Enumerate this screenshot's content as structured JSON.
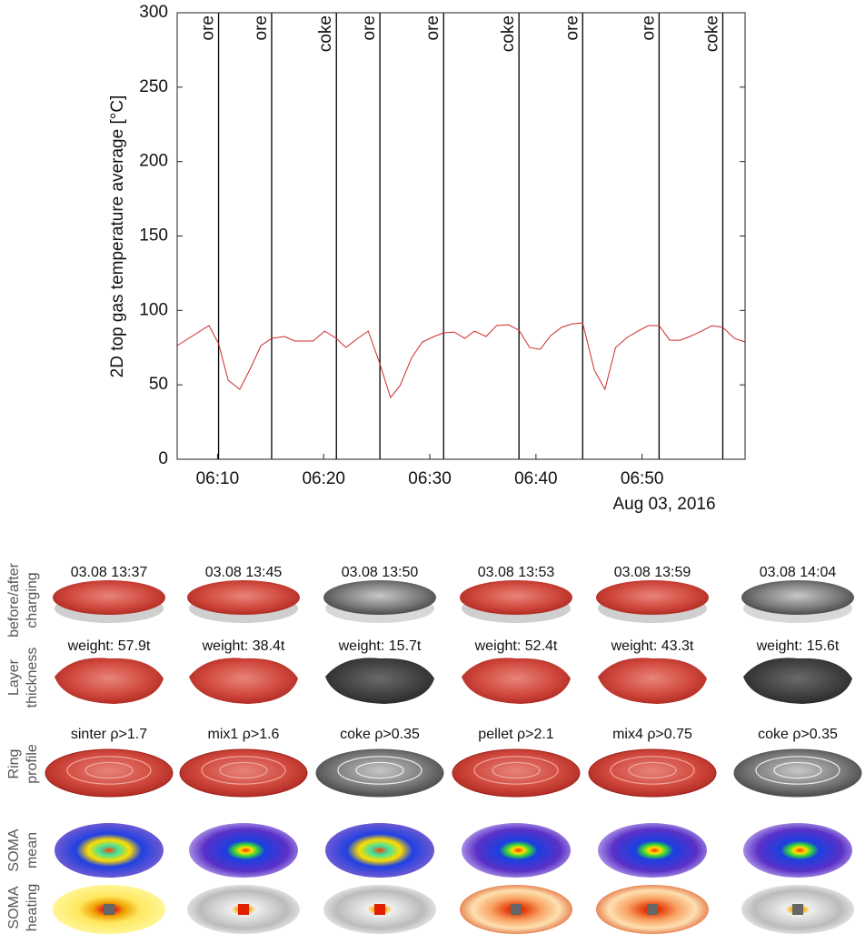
{
  "chart_data": {
    "type": "line",
    "y_label": "2D top gas temperature average [°C]",
    "date_label": "Aug 03, 2016",
    "color": "#cc2a2a",
    "xlim": [
      366.2,
      419.7
    ],
    "xticks": [
      {
        "value": 370,
        "label": "06:10"
      },
      {
        "value": 380,
        "label": "06:20"
      },
      {
        "value": 390,
        "label": "06:30"
      },
      {
        "value": 400,
        "label": "06:40"
      },
      {
        "value": 410,
        "label": "06:50"
      }
    ],
    "ylim": [
      0,
      300
    ],
    "yticks": [
      0,
      50,
      100,
      150,
      200,
      250,
      300
    ],
    "x": [
      366.2,
      369.2,
      370.1,
      371.0,
      372.1,
      373.1,
      374.1,
      375.1,
      376.3,
      377.3,
      379.0,
      380.1,
      381.2,
      382.1,
      383.2,
      384.2,
      385.3,
      386.3,
      387.2,
      388.3,
      389.3,
      390.4,
      391.3,
      392.3,
      393.3,
      394.2,
      395.3,
      396.3,
      397.4,
      398.4,
      399.4,
      400.4,
      401.4,
      402.4,
      403.4,
      404.4,
      405.5,
      406.5,
      407.5,
      408.6,
      409.6,
      410.6,
      411.6,
      412.6,
      413.6,
      414.5,
      415.6,
      416.6,
      417.6,
      418.7,
      419.7
    ],
    "values": [
      76.4,
      89.8,
      77.6,
      53.1,
      47.0,
      61.1,
      76.4,
      81.2,
      82.5,
      79.4,
      79.4,
      86.1,
      81.2,
      75.1,
      81.2,
      86.1,
      64.1,
      41.5,
      49.5,
      68.4,
      78.8,
      82.5,
      84.9,
      85.5,
      81.2,
      86.1,
      82.5,
      89.8,
      90.4,
      86.7,
      75.1,
      73.9,
      83.1,
      88.6,
      91.0,
      91.6,
      59.9,
      47.0,
      75.1,
      81.9,
      86.1,
      89.8,
      89.8,
      80.0,
      80.0,
      82.5,
      86.1,
      89.8,
      88.6,
      81.2,
      78.8
    ],
    "events": [
      {
        "x": 370.1,
        "label": "ore"
      },
      {
        "x": 375.1,
        "label": "ore"
      },
      {
        "x": 381.2,
        "label": "coke"
      },
      {
        "x": 385.3,
        "label": "ore"
      },
      {
        "x": 391.3,
        "label": "ore"
      },
      {
        "x": 398.4,
        "label": "coke"
      },
      {
        "x": 404.4,
        "label": "ore"
      },
      {
        "x": 411.6,
        "label": "ore"
      },
      {
        "x": 417.6,
        "label": "coke"
      }
    ]
  },
  "panels": {
    "row_labels": [
      [
        "before/after",
        "charging"
      ],
      [
        "Layer",
        "thickness"
      ],
      [
        "Ring",
        "profile"
      ],
      [
        "SOMA",
        "mean"
      ],
      [
        "SOMA",
        "heating"
      ]
    ],
    "times": [
      "03.08 13:37",
      "03.08 13:45",
      "03.08 13:50",
      "03.08 13:53",
      "03.08 13:59",
      "03.08 14:04"
    ],
    "weights": [
      "weight: 57.9t",
      "weight: 38.4t",
      "weight: 15.7t",
      "weight: 52.4t",
      "weight: 43.3t",
      "weight: 15.6t"
    ],
    "materials": [
      "sinter ρ>1.7",
      "mix1 ρ>1.6",
      "coke ρ>0.35",
      "pellet ρ>2.1",
      "mix4 ρ>0.75",
      "coke ρ>0.35"
    ]
  }
}
